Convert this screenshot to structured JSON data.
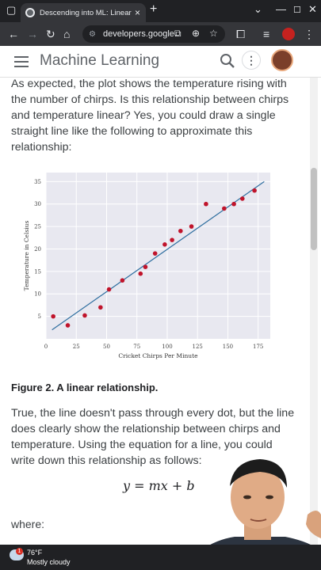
{
  "browser": {
    "tab_title": "Descending into ML: Linear Reg",
    "url": "developers.google....",
    "colors": {
      "chrome_dark": "#202124",
      "chrome_mid": "#35363a"
    }
  },
  "site": {
    "title": "Machine Learning",
    "menu_icon": "hamburger-menu-icon",
    "search_icon": "search-icon",
    "more_icon": "more-vertical-icon"
  },
  "content": {
    "intro": "As expected, the plot shows the temperature rising with the number of chirps. Is this relationship between chirps and temperature linear? Yes, you could draw a single straight line like the following to approximate this relationship:",
    "figure_caption": "Figure 2. A linear relationship.",
    "body": "True, the line doesn't pass through every dot, but the line does clearly show the relationship between chirps and temperature. Using the equation for a line, you could write down this relationship as follows:",
    "equation": "y = mx + b",
    "where": "where:"
  },
  "taskbar": {
    "temperature": "76°F",
    "condition": "Mostly cloudy",
    "badge": "1"
  },
  "chart_data": {
    "type": "scatter",
    "xlabel": "Cricket Chirps Per Minute",
    "ylabel": "Temperature in Celsius",
    "xlim": [
      0,
      185
    ],
    "ylim": [
      0,
      37
    ],
    "xticks": [
      0,
      25,
      50,
      75,
      100,
      125,
      150,
      175
    ],
    "yticks": [
      5,
      10,
      15,
      20,
      25,
      30,
      35
    ],
    "grid": true,
    "point_color": "#c0142b",
    "line_color": "#2f6fa0",
    "background": "#e8e8f0",
    "points": [
      {
        "x": 6,
        "y": 5
      },
      {
        "x": 18,
        "y": 3
      },
      {
        "x": 32,
        "y": 5.2
      },
      {
        "x": 45,
        "y": 7
      },
      {
        "x": 52,
        "y": 11
      },
      {
        "x": 63,
        "y": 13
      },
      {
        "x": 78,
        "y": 14.5
      },
      {
        "x": 82,
        "y": 16
      },
      {
        "x": 90,
        "y": 19
      },
      {
        "x": 98,
        "y": 21
      },
      {
        "x": 104,
        "y": 22
      },
      {
        "x": 111,
        "y": 24
      },
      {
        "x": 120,
        "y": 25
      },
      {
        "x": 132,
        "y": 30
      },
      {
        "x": 147,
        "y": 29
      },
      {
        "x": 155,
        "y": 30
      },
      {
        "x": 162,
        "y": 31.2
      },
      {
        "x": 172,
        "y": 33
      }
    ],
    "fit_line": {
      "x": [
        5,
        180
      ],
      "y": [
        2,
        35
      ]
    }
  }
}
